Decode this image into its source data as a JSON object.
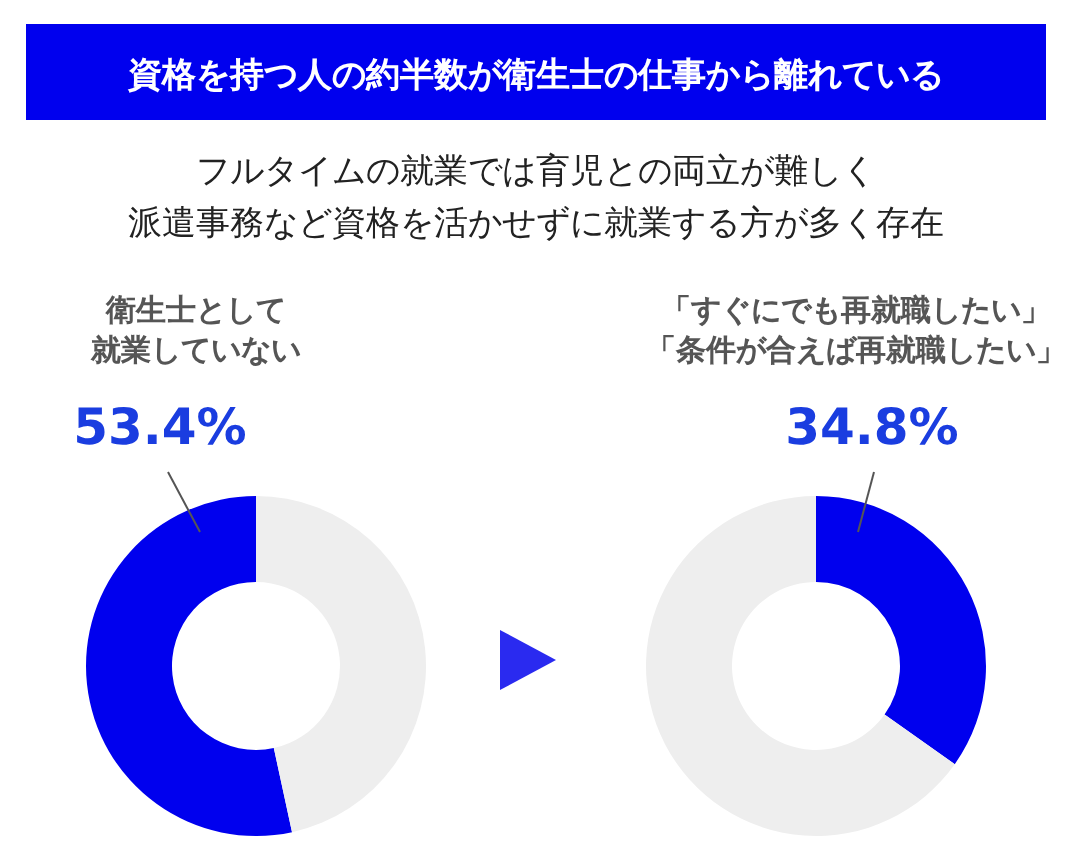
{
  "chart_data": [
    {
      "type": "donut",
      "title": "資格を持つ人の約半数が衛生士の仕事から離れている",
      "subtitle": "フルタイムの就業では育児との両立が難しく派遣事務など資格を活かせずに就業する方が多く存在",
      "categories": [
        "衛生士として就業していない",
        null
      ],
      "values": [
        53.4,
        46.6
      ],
      "colors": [
        "#0000ee",
        "#eeeeee"
      ],
      "value_labels": [
        "53.4%",
        null
      ]
    },
    {
      "type": "donut",
      "categories": [
        "「すぐにでも再就職したい」「条件が合えば再就職したい」",
        null
      ],
      "values": [
        34.8,
        65.2
      ],
      "colors": [
        "#0000ee",
        "#eeeeee"
      ],
      "value_labels": [
        "34.8%",
        null
      ]
    }
  ]
}
